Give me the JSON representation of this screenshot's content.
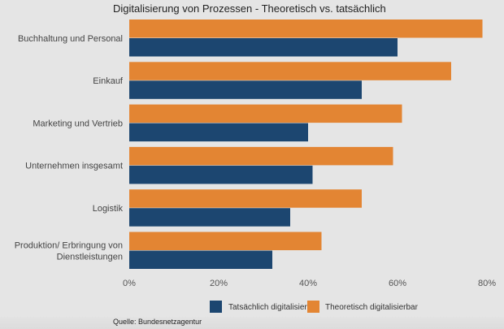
{
  "chart_data": {
    "type": "bar",
    "orientation": "horizontal",
    "title": "Digitalisierung von Prozessen - Theoretisch vs. tatsächlich",
    "categories": [
      "Buchhaltung und Personal",
      "Einkauf",
      "Marketing und Vertrieb",
      "Unternehmen insgesamt",
      "Logistik",
      "Produktion/ Erbringung von Dienstleistungen"
    ],
    "category_lines": [
      [
        "Buchhaltung und Personal"
      ],
      [
        "Einkauf"
      ],
      [
        "Marketing und Vertrieb"
      ],
      [
        "Unternehmen insgesamt"
      ],
      [
        "Logistik"
      ],
      [
        "Produktion/ Erbringung von",
        "Dienstleistungen"
      ]
    ],
    "series": [
      {
        "name": "Theoretisch digitalisierbar",
        "color": "#e38533",
        "values": [
          79,
          72,
          61,
          59,
          52,
          43
        ]
      },
      {
        "name": "Tatsächlich digitalisiert",
        "color": "#1c4670",
        "values": [
          60,
          52,
          40,
          41,
          36,
          32
        ]
      }
    ],
    "xlabel": "",
    "ylabel": "",
    "xlim": [
      0,
      80
    ],
    "xticks": [
      0,
      20,
      40,
      60,
      80
    ],
    "xtick_labels": [
      "0%",
      "20%",
      "40%",
      "60%",
      "80%"
    ],
    "grid": false,
    "legend": {
      "position": "bottom-center",
      "entries": [
        {
          "label": "Tatsächlich digitalisiert",
          "color": "#1c4670"
        },
        {
          "label": "Theoretisch digitalisierbar",
          "color": "#e38533"
        }
      ]
    },
    "source": "Quelle: Bundesnetzagentur"
  }
}
